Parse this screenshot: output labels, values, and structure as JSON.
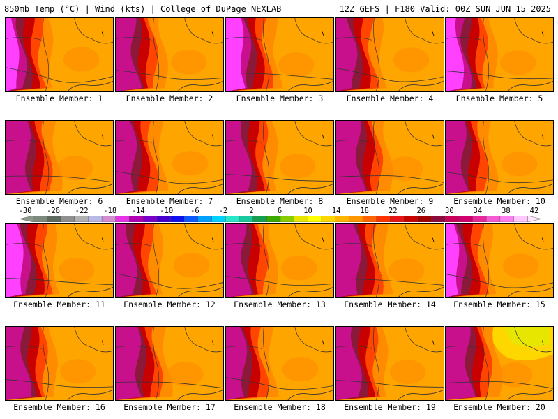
{
  "header": {
    "left": "850mb Temp (°C) | Wind (kts) | College of DuPage NEXLAB",
    "right": "12Z GEFS | F180 Valid: 00Z SUN JUN 15 2025"
  },
  "colorbar": {
    "labels": [
      "-30",
      "-26",
      "-22",
      "-18",
      "-14",
      "-10",
      "-6",
      "-2",
      "2",
      "6",
      "10",
      "14",
      "18",
      "22",
      "26",
      "30",
      "34",
      "38",
      "42"
    ],
    "colors": [
      "#8c9a8c",
      "#7f8a7f",
      "#5f6a5f",
      "#8f8f8f",
      "#b0b0b0",
      "#b9b9e6",
      "#d28cd2",
      "#e633e6",
      "#b400b4",
      "#7a00c8",
      "#4400cc",
      "#1010ee",
      "#0a5aff",
      "#00a0ff",
      "#00d2ff",
      "#29e6c8",
      "#19c89c",
      "#14a050",
      "#3aaa00",
      "#88cc00",
      "#e6e600",
      "#ffff00",
      "#ffd700",
      "#ffb400",
      "#ff9600",
      "#ff6400",
      "#ff3200",
      "#e61414",
      "#c80000",
      "#a00000",
      "#8c0a3c",
      "#c8005a",
      "#d2006e",
      "#e6289a",
      "#f55ad2",
      "#ff80f0",
      "#ffc8ff",
      "#ffe6ff"
    ]
  },
  "members": [
    "Ensemble Member: 1",
    "Ensemble Member: 2",
    "Ensemble Member: 3",
    "Ensemble Member: 4",
    "Ensemble Member: 5",
    "Ensemble Member: 6",
    "Ensemble Member: 7",
    "Ensemble Member: 8",
    "Ensemble Member: 9",
    "Ensemble Member: 10",
    "Ensemble Member: 11",
    "Ensemble Member: 12",
    "Ensemble Member: 13",
    "Ensemble Member: 14",
    "Ensemble Member: 15",
    "Ensemble Member: 16",
    "Ensemble Member: 17",
    "Ensemble Member: 18",
    "Ensemble Member: 19",
    "Ensemble Member: 20"
  ],
  "colors": {
    "cold": "#ffa500",
    "orange": "#ff8c00",
    "red": "#ff4500",
    "darkred": "#c80000",
    "maroon": "#8b1a3a",
    "magenta": "#c8108c",
    "pink": "#ff40ff",
    "yellow": "#ffd700",
    "lime": "#e6e600"
  }
}
